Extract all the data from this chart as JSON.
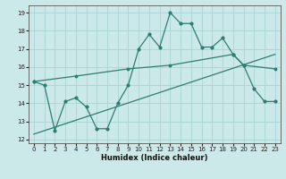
{
  "xlabel": "Humidex (Indice chaleur)",
  "background_color": "#cce9e9",
  "grid_color": "#aad4d4",
  "line_color": "#2d7d72",
  "xlim": [
    -0.5,
    23.5
  ],
  "ylim": [
    11.8,
    19.4
  ],
  "xticks": [
    0,
    1,
    2,
    3,
    4,
    5,
    6,
    7,
    8,
    9,
    10,
    11,
    12,
    13,
    14,
    15,
    16,
    17,
    18,
    19,
    20,
    21,
    22,
    23
  ],
  "yticks": [
    12,
    13,
    14,
    15,
    16,
    17,
    18,
    19
  ],
  "line1_x": [
    0,
    1,
    2,
    3,
    4,
    5,
    6,
    7,
    8,
    9,
    10,
    11,
    12,
    13,
    14,
    15,
    16,
    17,
    18,
    19,
    20,
    21,
    22,
    23
  ],
  "line1_y": [
    15.2,
    15.0,
    12.5,
    14.1,
    14.3,
    13.8,
    12.6,
    12.6,
    14.0,
    15.0,
    17.0,
    17.8,
    17.1,
    19.0,
    18.4,
    18.4,
    17.1,
    17.1,
    17.6,
    16.7,
    16.1,
    14.8,
    14.1,
    14.1
  ],
  "line2_x": [
    0,
    4,
    9,
    13,
    19,
    20,
    23
  ],
  "line2_y": [
    15.2,
    15.5,
    15.9,
    16.1,
    16.7,
    16.1,
    15.9
  ],
  "line3_x": [
    0,
    23
  ],
  "line3_y": [
    12.3,
    16.7
  ]
}
